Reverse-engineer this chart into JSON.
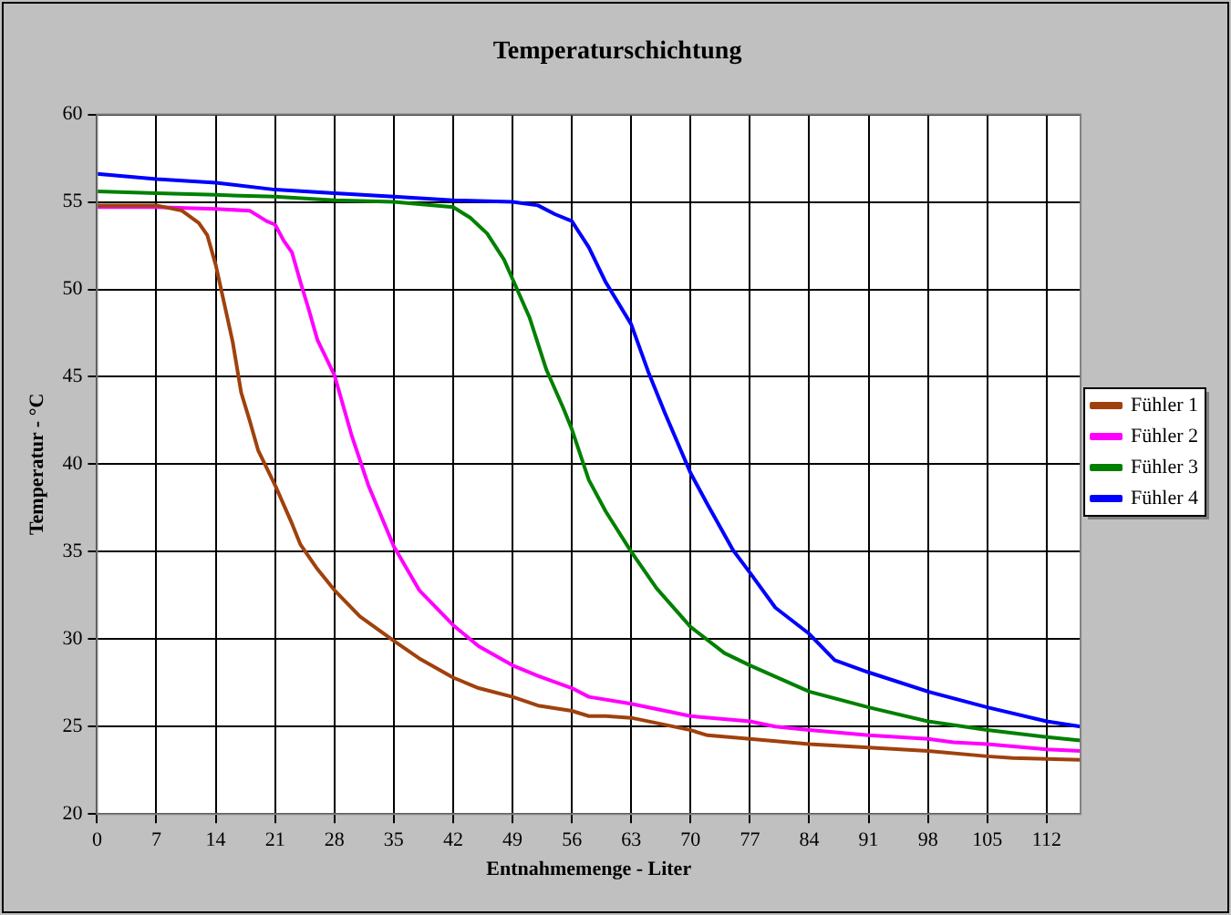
{
  "chart_data": {
    "type": "line",
    "title": "Temperaturschichtung",
    "xlabel": "Entnahmemenge - Liter",
    "ylabel": "Temperatur - °C",
    "xlim": [
      0,
      116
    ],
    "xticks": [
      0,
      7,
      14,
      21,
      28,
      35,
      42,
      49,
      56,
      63,
      70,
      77,
      84,
      91,
      98,
      105,
      112
    ],
    "ylim": [
      20,
      60
    ],
    "yticks": [
      20,
      25,
      30,
      35,
      40,
      45,
      50,
      55,
      60
    ],
    "grid": true,
    "legend": "right",
    "marker": "none",
    "line_style": "solid",
    "series": [
      {
        "name": "Fühler 1",
        "color": "#a0410d",
        "x": [
          0,
          7,
          10,
          12,
          13,
          14,
          15,
          16,
          17,
          18,
          19,
          21,
          23,
          24,
          26,
          28,
          31,
          35,
          38,
          42,
          45,
          49,
          52,
          56,
          58,
          60,
          63,
          66,
          70,
          72,
          77,
          84,
          91,
          98,
          105,
          108,
          116
        ],
        "values": [
          54.8,
          54.8,
          54.5,
          53.8,
          53.1,
          51.4,
          49.2,
          47,
          44.1,
          42.5,
          40.8,
          38.8,
          36.6,
          35.4,
          34,
          32.8,
          31.3,
          29.9,
          28.9,
          27.8,
          27.2,
          26.7,
          26.2,
          25.9,
          25.6,
          25.6,
          25.5,
          25.2,
          24.8,
          24.5,
          24.3,
          24,
          23.8,
          23.6,
          23.3,
          23.2,
          23.1
        ]
      },
      {
        "name": "Fühler 2",
        "color": "#ff00ff",
        "x": [
          0,
          7,
          14,
          18,
          20,
          21,
          22,
          23,
          24,
          25,
          26,
          28,
          30,
          32,
          35,
          38,
          42,
          45,
          49,
          52,
          56,
          58,
          63,
          70,
          77,
          80,
          84,
          91,
          98,
          101,
          105,
          112,
          116
        ],
        "values": [
          54.7,
          54.7,
          54.6,
          54.5,
          53.9,
          53.7,
          52.8,
          52.1,
          50.4,
          48.8,
          47.1,
          45.1,
          41.7,
          38.8,
          35.3,
          32.8,
          30.8,
          29.6,
          28.5,
          27.9,
          27.2,
          26.7,
          26.3,
          25.6,
          25.3,
          25,
          24.8,
          24.5,
          24.3,
          24.1,
          24,
          23.7,
          23.6
        ]
      },
      {
        "name": "Fühler 3",
        "color": "#008000",
        "x": [
          0,
          7,
          14,
          21,
          28,
          35,
          42,
          44,
          46,
          48,
          49,
          51,
          53,
          55,
          56,
          58,
          60,
          63,
          66,
          70,
          74,
          77,
          84,
          91,
          98,
          105,
          112,
          116
        ],
        "values": [
          55.6,
          55.5,
          55.4,
          55.3,
          55.1,
          55,
          54.7,
          54.1,
          53.2,
          51.7,
          50.6,
          48.4,
          45.4,
          43.2,
          42,
          39.1,
          37.3,
          35,
          32.9,
          30.7,
          29.2,
          28.5,
          27,
          26.1,
          25.3,
          24.8,
          24.4,
          24.2
        ]
      },
      {
        "name": "Fühler 4",
        "color": "#0000ff",
        "x": [
          0,
          7,
          14,
          21,
          28,
          35,
          42,
          49,
          52,
          54,
          56,
          58,
          60,
          63,
          65,
          67,
          70,
          72,
          75,
          77,
          80,
          84,
          87,
          91,
          98,
          105,
          112,
          116
        ],
        "values": [
          56.6,
          56.3,
          56.1,
          55.7,
          55.5,
          55.3,
          55.1,
          55,
          54.8,
          54.3,
          53.9,
          52.4,
          50.4,
          48,
          45.3,
          42.9,
          39.5,
          37.7,
          35.1,
          33.8,
          31.8,
          30.3,
          28.8,
          28.1,
          27,
          26.1,
          25.3,
          25
        ]
      }
    ]
  }
}
